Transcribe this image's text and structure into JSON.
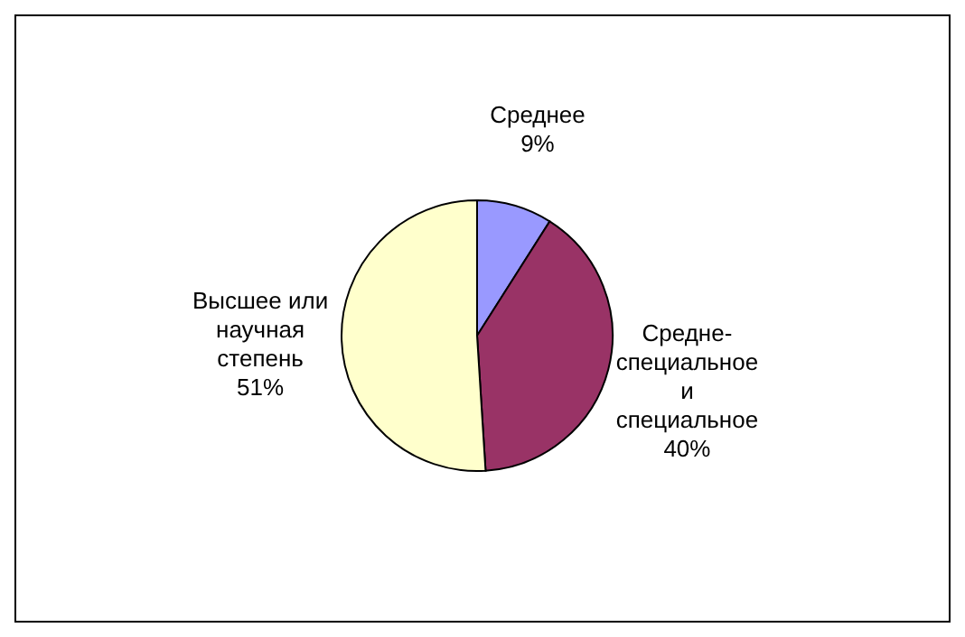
{
  "chart_data": {
    "type": "pie",
    "categories": [
      "Среднее",
      "Средне-специальное и специальное",
      "Высшее или научная степень"
    ],
    "values": [
      9,
      40,
      51
    ],
    "colors": [
      "#9999ff",
      "#993366",
      "#ffffcc"
    ],
    "value_labels": [
      "9%",
      "40%",
      "51%"
    ]
  }
}
